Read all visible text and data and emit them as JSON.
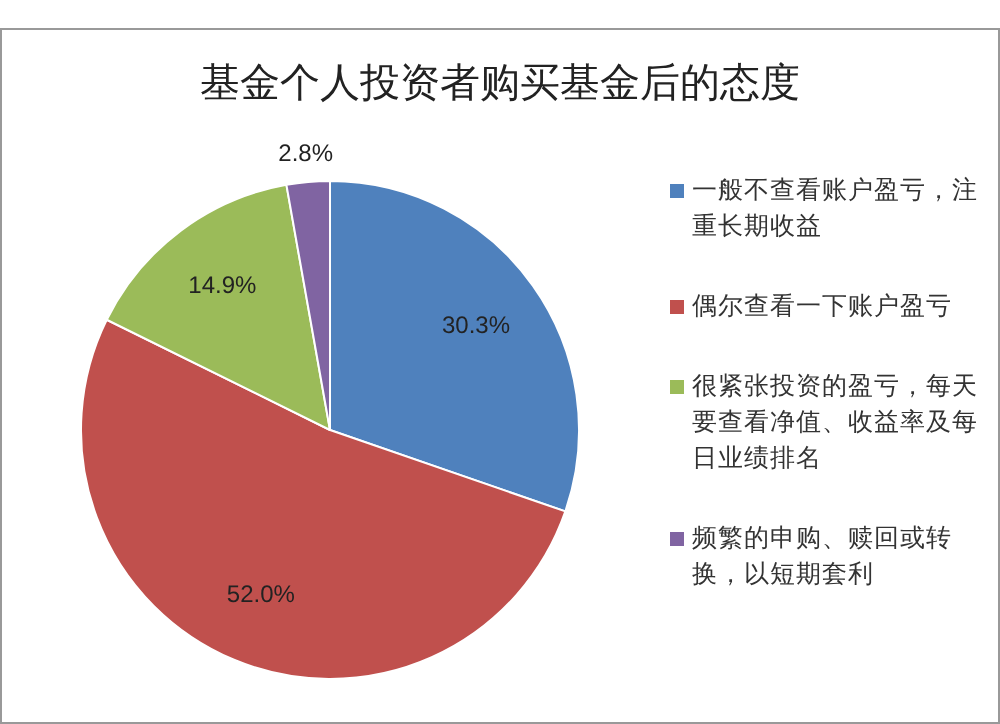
{
  "chart_data": {
    "type": "pie",
    "title": "基金个人投资者购买基金后的态度",
    "categories": [
      "一般不查看账户盈亏，注重长期收益",
      "偶尔查看一下账户盈亏",
      "很紧张投资的盈亏，每天要查看净值、收益率及每日业绩排名",
      "频繁的申购、赎回或转换，以短期套利"
    ],
    "values": [
      30.3,
      52.0,
      14.9,
      2.8
    ],
    "colors": [
      "#4f81bd",
      "#c0504d",
      "#9bbb59",
      "#8064a2"
    ],
    "value_labels": [
      "30.3%",
      "52.0%",
      "14.9%",
      "2.8%"
    ],
    "legend": "right"
  }
}
